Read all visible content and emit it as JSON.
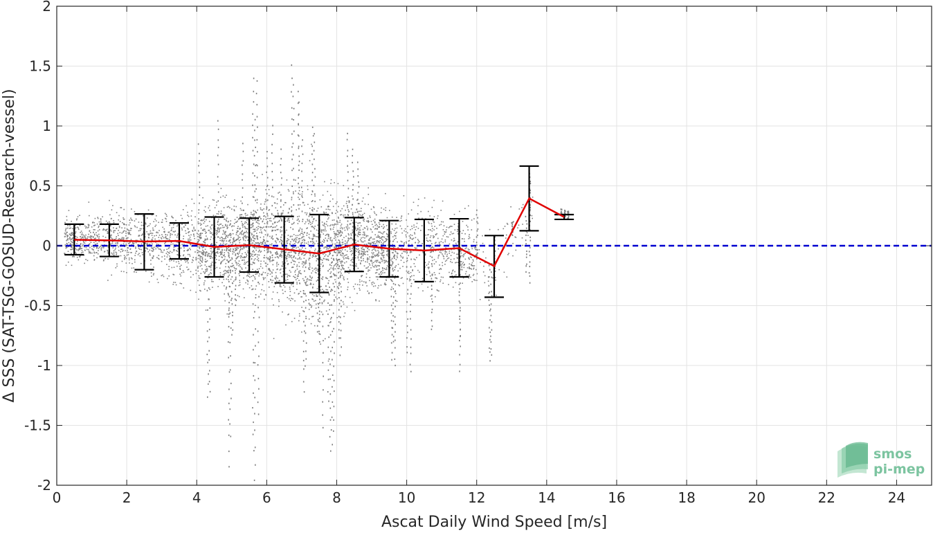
{
  "chart_data": {
    "type": "scatter",
    "xlabel": "Ascat Daily Wind Speed [m/s]",
    "ylabel": "Δ SSS (SAT-TSG-GOSUD-Research-vessel)",
    "xlim": [
      0,
      25
    ],
    "ylim": [
      -2,
      2
    ],
    "x_ticks": [
      0,
      2,
      4,
      6,
      8,
      10,
      12,
      14,
      16,
      18,
      20,
      22,
      24
    ],
    "y_ticks": [
      -2,
      -1.5,
      -1,
      -0.5,
      0,
      0.5,
      1,
      1.5,
      2
    ],
    "x_tick_labels": [
      "0",
      "2",
      "4",
      "6",
      "8",
      "10",
      "12",
      "14",
      "16",
      "18",
      "20",
      "22",
      "24"
    ],
    "y_tick_labels": [
      "-2",
      "-1.5",
      "-1",
      "-0.5",
      "0",
      "0.5",
      "1",
      "1.5",
      "2"
    ],
    "grid": true,
    "zero_line": {
      "y": 0,
      "color": "#0000d0",
      "style": "dashed"
    },
    "scatter_color": "#808080",
    "mean_line_color": "#e00000",
    "errorbar_color": "#000000",
    "binned": {
      "x": [
        0.5,
        1.5,
        2.5,
        3.5,
        4.5,
        5.5,
        6.5,
        7.5,
        8.5,
        9.5,
        10.5,
        11.5,
        12.5,
        13.5,
        14.5
      ],
      "mean": [
        0.05,
        0.045,
        0.035,
        0.04,
        -0.01,
        0.005,
        -0.03,
        -0.065,
        0.01,
        -0.025,
        -0.04,
        -0.02,
        -0.17,
        0.395,
        0.24
      ],
      "upper": [
        0.18,
        0.18,
        0.265,
        0.19,
        0.24,
        0.23,
        0.245,
        0.26,
        0.235,
        0.21,
        0.22,
        0.225,
        0.085,
        0.665,
        0.26
      ],
      "lower": [
        -0.075,
        -0.09,
        -0.2,
        -0.11,
        -0.26,
        -0.22,
        -0.31,
        -0.39,
        -0.215,
        -0.26,
        -0.3,
        -0.26,
        -0.43,
        0.125,
        0.22
      ]
    },
    "scatter_envelope": {
      "x": [
        0.2,
        1,
        2,
        3,
        4,
        4.5,
        5,
        5.5,
        6,
        6.5,
        7,
        7.5,
        8,
        8.5,
        9,
        9.5,
        10,
        10.5,
        11,
        11.5,
        12,
        12.5,
        13,
        13.5
      ],
      "std": [
        0.09,
        0.09,
        0.12,
        0.12,
        0.17,
        0.18,
        0.18,
        0.2,
        0.22,
        0.22,
        0.25,
        0.26,
        0.2,
        0.18,
        0.17,
        0.17,
        0.18,
        0.18,
        0.15,
        0.15,
        0.14,
        0.16,
        0.15,
        0.18
      ],
      "mean": [
        0.05,
        0.045,
        0.035,
        0.04,
        0.0,
        -0.01,
        0.0,
        0.005,
        -0.02,
        -0.03,
        -0.05,
        -0.065,
        0.0,
        0.01,
        -0.02,
        -0.025,
        -0.04,
        -0.04,
        -0.03,
        -0.02,
        -0.1,
        -0.17,
        0.1,
        0.3
      ]
    },
    "scatter_extremes": [
      [
        5.6,
        1.4
      ],
      [
        5.7,
        1.38
      ],
      [
        5.65,
        1.05
      ],
      [
        6.7,
        1.5
      ],
      [
        6.75,
        1.35
      ],
      [
        6.9,
        1.3
      ],
      [
        6.9,
        1.2
      ],
      [
        7.3,
        1.0
      ],
      [
        7.35,
        0.95
      ],
      [
        6.15,
        1.0
      ],
      [
        6.4,
        0.8
      ],
      [
        4.6,
        1.05
      ],
      [
        4.05,
        0.85
      ],
      [
        8.3,
        0.95
      ],
      [
        8.45,
        0.8
      ],
      [
        8.6,
        0.7
      ],
      [
        5.3,
        0.85
      ],
      [
        7.0,
        0.9
      ],
      [
        6.0,
        0.8
      ],
      [
        4.9,
        -1.85
      ],
      [
        4.95,
        -1.6
      ],
      [
        5.65,
        -1.95
      ],
      [
        5.75,
        -1.4
      ],
      [
        5.6,
        -1.7
      ],
      [
        4.3,
        -1.25
      ],
      [
        4.35,
        -1.2
      ],
      [
        7.05,
        -1.2
      ],
      [
        7.1,
        -1.0
      ],
      [
        7.6,
        -1.5
      ],
      [
        7.9,
        -1.55
      ],
      [
        7.85,
        -1.65
      ],
      [
        7.8,
        -1.7
      ],
      [
        7.75,
        -1.3
      ],
      [
        8.1,
        -0.9
      ],
      [
        8.05,
        -0.75
      ],
      [
        9.6,
        -0.8
      ],
      [
        9.55,
        -0.95
      ],
      [
        9.65,
        -1.0
      ],
      [
        10.0,
        -0.9
      ],
      [
        10.1,
        -1.05
      ],
      [
        10.7,
        -0.7
      ],
      [
        11.5,
        -1.05
      ],
      [
        11.5,
        -0.8
      ],
      [
        12.35,
        -0.95
      ],
      [
        12.4,
        -0.9
      ],
      [
        4.9,
        -0.6
      ],
      [
        5.0,
        -0.75
      ],
      [
        5.1,
        -0.5
      ],
      [
        7.45,
        -0.7
      ],
      [
        7.5,
        -0.8
      ],
      [
        12.0,
        0.3
      ],
      [
        12.5,
        0.1
      ],
      [
        13.0,
        0.2
      ],
      [
        13.5,
        0.6
      ],
      [
        13.4,
        -0.2
      ],
      [
        13.5,
        -0.3
      ],
      [
        14.4,
        0.26
      ],
      [
        14.5,
        0.25
      ],
      [
        14.6,
        0.24
      ]
    ]
  },
  "logo": {
    "line1": "smos",
    "line2": "pi-mep"
  }
}
